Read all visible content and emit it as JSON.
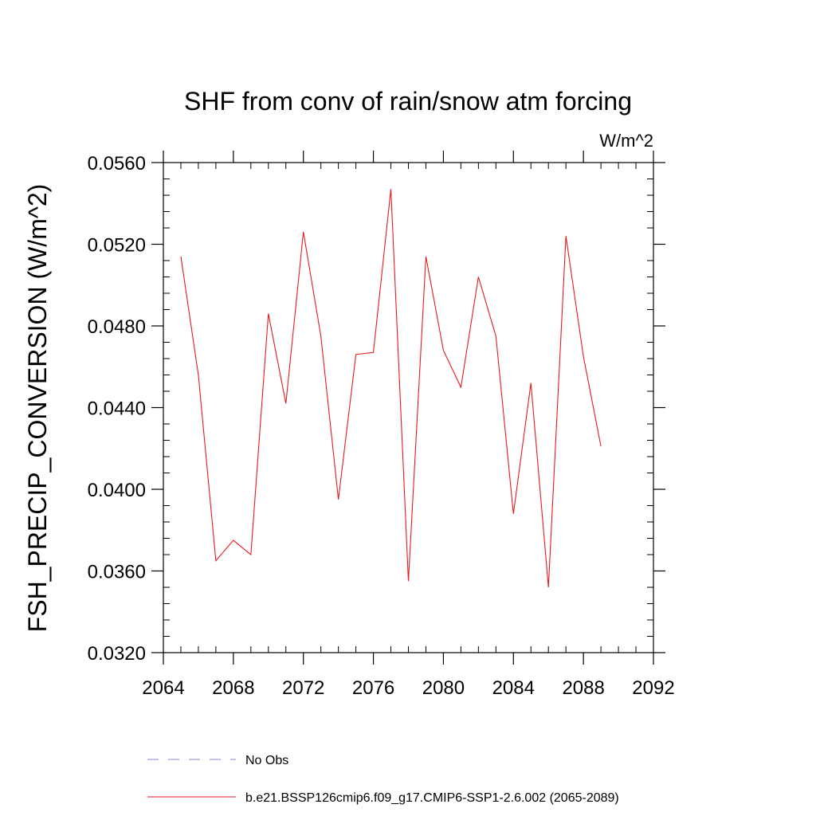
{
  "chart_data": {
    "type": "line",
    "title": "SHF from conv of rain/snow atm forcing",
    "units": "W/m^2",
    "ylabel": "FSH_PRECIP_CONVERSION  (W/m^2)",
    "xlabel": "",
    "xlim": [
      2064,
      2092
    ],
    "ylim": [
      0.032,
      0.056
    ],
    "xticks": [
      2064,
      2068,
      2072,
      2076,
      2080,
      2084,
      2088,
      2092
    ],
    "xtick_labels": [
      "2064",
      "2068",
      "2072",
      "2076",
      "2080",
      "2084",
      "2088",
      "2092"
    ],
    "yticks": [
      0.032,
      0.036,
      0.04,
      0.044,
      0.048,
      0.052,
      0.056
    ],
    "ytick_labels": [
      "0.0320",
      "0.0360",
      "0.0400",
      "0.0440",
      "0.0480",
      "0.0520",
      "0.0560"
    ],
    "grid": false,
    "legend_position": "bottom",
    "series": [
      {
        "name": "b.e21.BSSP126cmip6.f09_g17.CMIP6-SSP1-2.6.002 (2065-2089)",
        "color": "#e8191e",
        "style": "solid",
        "x": [
          2065,
          2066,
          2067,
          2068,
          2069,
          2070,
          2071,
          2072,
          2073,
          2074,
          2075,
          2076,
          2077,
          2078,
          2079,
          2080,
          2081,
          2082,
          2083,
          2084,
          2085,
          2086,
          2087,
          2088,
          2089
        ],
        "values": [
          0.0514,
          0.0456,
          0.0365,
          0.0375,
          0.0368,
          0.0486,
          0.0442,
          0.0526,
          0.0475,
          0.0395,
          0.0466,
          0.0467,
          0.0547,
          0.0355,
          0.0514,
          0.0468,
          0.045,
          0.0504,
          0.0475,
          0.0388,
          0.0452,
          0.0352,
          0.0524,
          0.0465,
          0.0421
        ]
      },
      {
        "name": "No Obs",
        "color": "#8a84c6",
        "style": "dashed",
        "x": [],
        "values": []
      }
    ]
  }
}
